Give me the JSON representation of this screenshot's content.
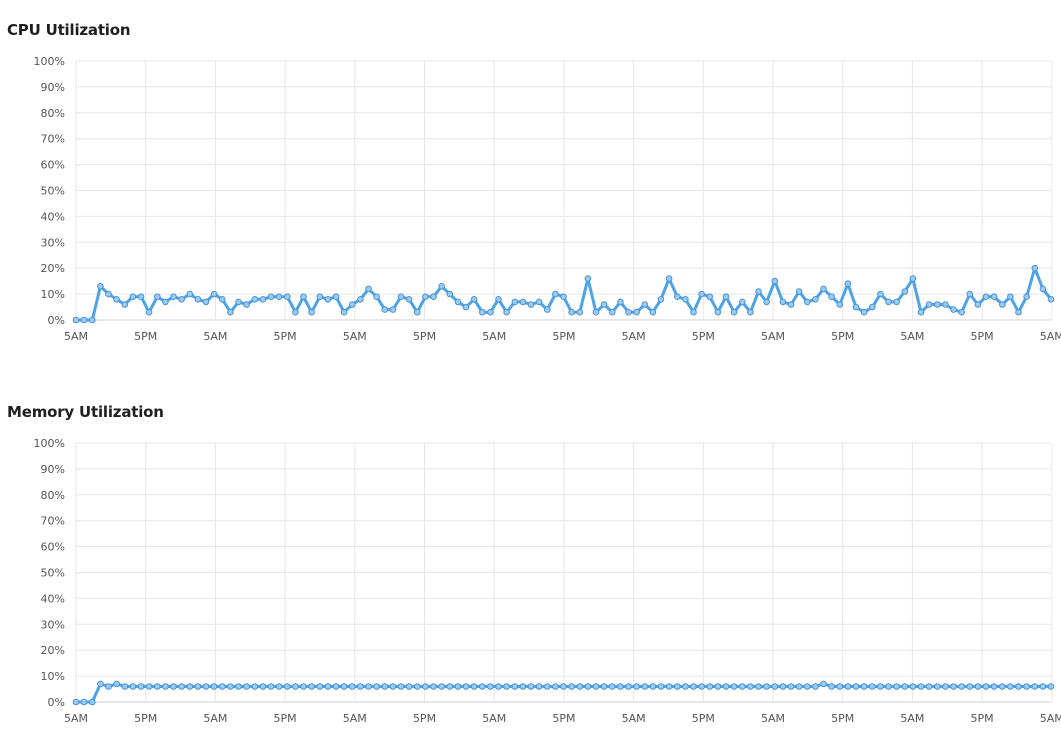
{
  "panels": [
    {
      "title": "CPU Utilization"
    },
    {
      "title": "Memory Utilization"
    }
  ],
  "colors": {
    "line": "#4da3e8",
    "point_fill": "#9ccbf2",
    "point_stroke": "#4a93d6",
    "grid": "#e6e6e6",
    "axis": "#cfcfcf"
  },
  "chart_data": [
    {
      "type": "line",
      "title": "CPU Utilization",
      "xlabel": "",
      "ylabel": "",
      "ylim": [
        0,
        100
      ],
      "yticks": [
        "0%",
        "10%",
        "20%",
        "30%",
        "40%",
        "50%",
        "60%",
        "70%",
        "80%",
        "90%",
        "100%"
      ],
      "xticks": [
        "5AM",
        "5PM",
        "5AM",
        "5PM",
        "5AM",
        "5PM",
        "5AM",
        "5PM",
        "5AM",
        "5PM",
        "5AM",
        "5PM",
        "5AM",
        "5PM",
        "5AM"
      ],
      "grid": true,
      "series": [
        {
          "values": [
            0,
            0,
            0,
            13,
            10,
            8,
            6,
            9,
            9,
            3,
            9,
            7,
            9,
            8,
            10,
            8,
            7,
            10,
            8,
            3,
            7,
            6,
            8,
            8,
            9,
            9,
            9,
            3,
            9,
            3,
            9,
            8,
            9,
            3,
            6,
            8,
            12,
            9,
            4,
            4,
            9,
            8,
            3,
            9,
            9,
            13,
            10,
            7,
            5,
            8,
            3,
            3,
            8,
            3,
            7,
            7,
            6,
            7,
            4,
            10,
            9,
            3,
            3,
            16,
            3,
            6,
            3,
            7,
            3,
            3,
            6,
            3,
            8,
            16,
            9,
            8,
            3,
            10,
            9,
            3,
            9,
            3,
            7,
            3,
            11,
            7,
            15,
            7,
            6,
            11,
            7,
            8,
            12,
            9,
            6,
            14,
            5,
            3,
            5,
            10,
            7,
            7,
            11,
            16,
            3,
            6,
            6,
            6,
            4,
            3,
            10,
            6,
            9,
            9,
            6,
            9,
            3,
            9,
            20,
            12,
            8
          ]
        }
      ]
    },
    {
      "type": "line",
      "title": "Memory Utilization",
      "xlabel": "",
      "ylabel": "",
      "ylim": [
        0,
        100
      ],
      "yticks": [
        "0%",
        "10%",
        "20%",
        "30%",
        "40%",
        "50%",
        "60%",
        "70%",
        "80%",
        "90%",
        "100%"
      ],
      "xticks": [
        "5AM",
        "5PM",
        "5AM",
        "5PM",
        "5AM",
        "5PM",
        "5AM",
        "5PM",
        "5AM",
        "5PM",
        "5AM",
        "5PM",
        "5AM",
        "5PM",
        "5AM"
      ],
      "grid": true,
      "series": [
        {
          "values": [
            0,
            0,
            0,
            7,
            6,
            7,
            6,
            6,
            6,
            6,
            6,
            6,
            6,
            6,
            6,
            6,
            6,
            6,
            6,
            6,
            6,
            6,
            6,
            6,
            6,
            6,
            6,
            6,
            6,
            6,
            6,
            6,
            6,
            6,
            6,
            6,
            6,
            6,
            6,
            6,
            6,
            6,
            6,
            6,
            6,
            6,
            6,
            6,
            6,
            6,
            6,
            6,
            6,
            6,
            6,
            6,
            6,
            6,
            6,
            6,
            6,
            6,
            6,
            6,
            6,
            6,
            6,
            6,
            6,
            6,
            6,
            6,
            6,
            6,
            6,
            6,
            6,
            6,
            6,
            6,
            6,
            6,
            6,
            6,
            6,
            6,
            6,
            6,
            6,
            6,
            6,
            6,
            7,
            6,
            6,
            6,
            6,
            6,
            6,
            6,
            6,
            6,
            6,
            6,
            6,
            6,
            6,
            6,
            6,
            6,
            6,
            6,
            6,
            6,
            6,
            6,
            6,
            6,
            6,
            6,
            6
          ]
        }
      ]
    }
  ]
}
